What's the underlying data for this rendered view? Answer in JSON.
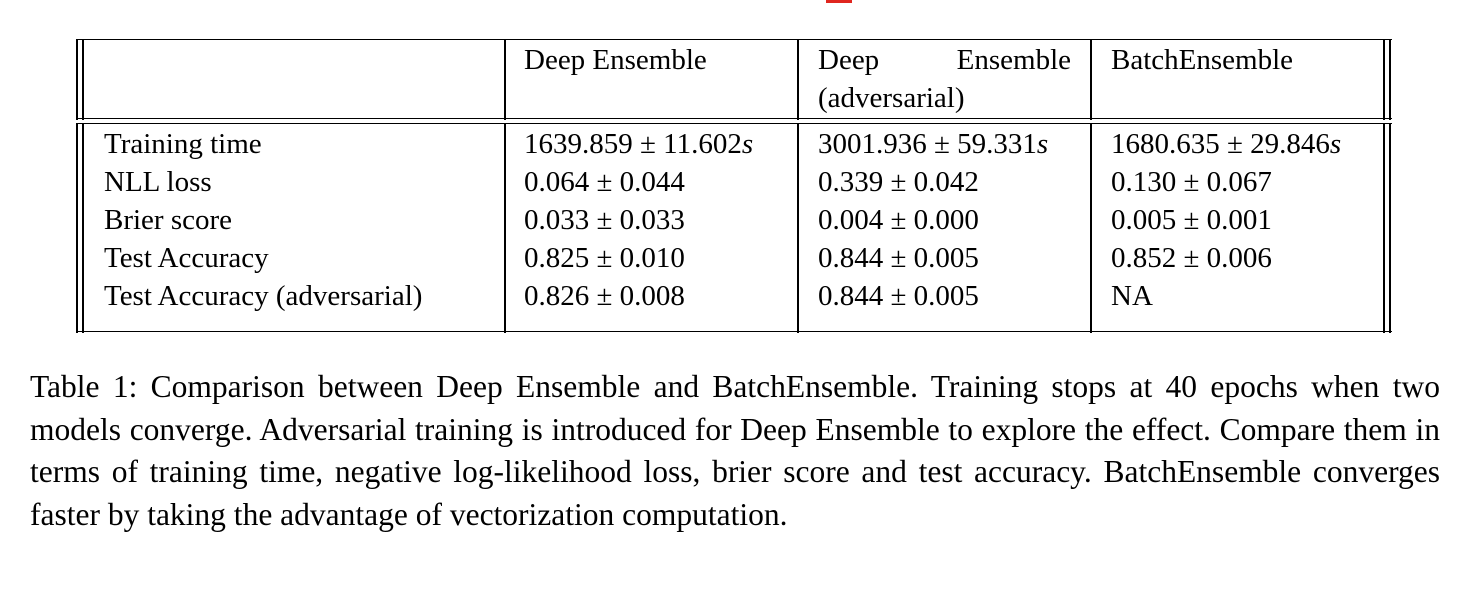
{
  "table": {
    "columns": [
      "",
      "Deep Ensemble",
      "Deep Ensemble (adversarial)",
      "BatchEnsemble"
    ],
    "header": {
      "col2": "Deep Ensemble",
      "col3_line1_a": "Deep",
      "col3_line1_b": "Ensemble",
      "col3_line2": "(adversarial)",
      "col4": "BatchEnsemble"
    },
    "rows": [
      {
        "label": "Training time",
        "deep_ensemble": "1639.859 ± 11.602s",
        "deep_ensemble_adversarial": "3001.936 ± 59.331s",
        "batch_ensemble": "1680.635 ± 29.846s"
      },
      {
        "label": "NLL loss",
        "deep_ensemble": "0.064 ± 0.044",
        "deep_ensemble_adversarial": "0.339 ± 0.042",
        "batch_ensemble": "0.130 ± 0.067"
      },
      {
        "label": "Brier score",
        "deep_ensemble": "0.033 ± 0.033",
        "deep_ensemble_adversarial": "0.004 ± 0.000",
        "batch_ensemble": "0.005 ± 0.001"
      },
      {
        "label": "Test Accuracy",
        "deep_ensemble": "0.825 ± 0.010",
        "deep_ensemble_adversarial": "0.844 ± 0.005",
        "batch_ensemble": "0.852 ± 0.006"
      },
      {
        "label": "Test Accuracy (adversarial)",
        "deep_ensemble": "0.826 ± 0.008",
        "deep_ensemble_adversarial": "0.844 ± 0.005",
        "batch_ensemble": "NA"
      }
    ]
  },
  "caption": "Table 1: Comparison between Deep Ensemble and BatchEnsemble. Training stops at 40 epochs when two models converge. Adversarial training is introduced for Deep Ensemble to explore the effect. Compare them in terms of training time, negative log-likelihood loss, brier score and test accuracy. BatchEnsemble converges faster by taking the advantage of vectorization computation.",
  "colors": {
    "text": "#000000",
    "rule": "#000000",
    "accent_mark": "#e0261f"
  }
}
